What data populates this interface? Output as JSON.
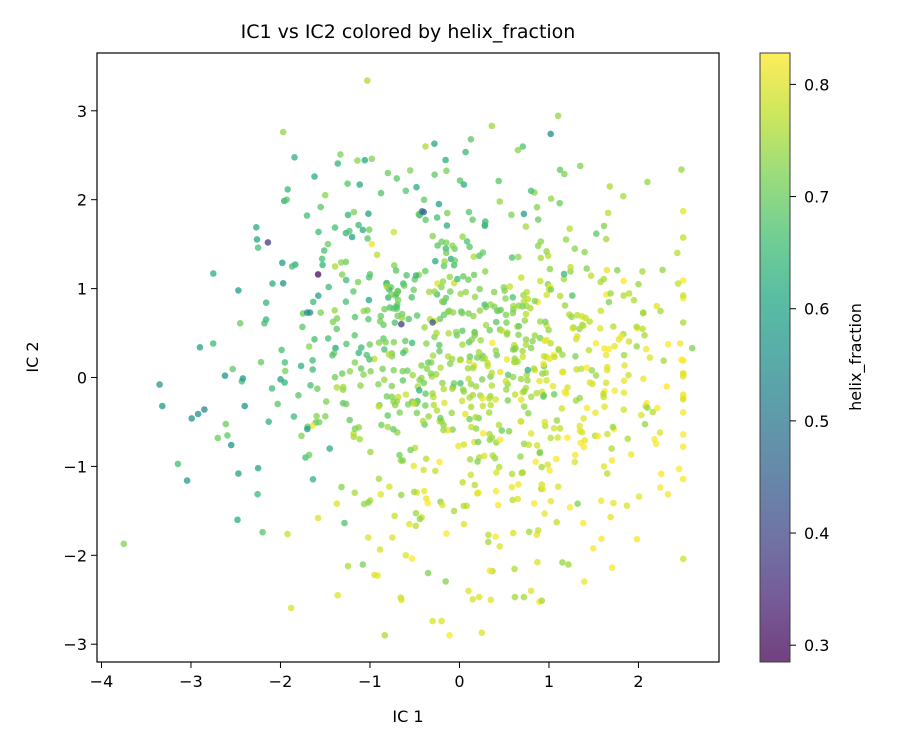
{
  "chart_data": {
    "type": "scatter",
    "title": "IC1 vs IC2 colored by helix_fraction",
    "xlabel": "IC 1",
    "ylabel": "IC 2",
    "xlim": [
      -4.05,
      2.9
    ],
    "ylim": [
      -3.2,
      3.65
    ],
    "xticks": [
      -4,
      -3,
      -2,
      -1,
      0,
      1,
      2
    ],
    "yticks": [
      -3,
      -2,
      -1,
      0,
      1,
      2,
      3
    ],
    "colorbar": {
      "label": "helix_fraction",
      "range": [
        0.285,
        0.828
      ],
      "ticks": [
        0.3,
        0.4,
        0.5,
        0.6,
        0.7,
        0.8
      ],
      "colormap": "viridis"
    },
    "grid": false,
    "n_points_approx": 900,
    "points": [
      {
        "x": -3.75,
        "y": -1.87,
        "c": 0.72
      },
      {
        "x": -3.35,
        "y": -0.08,
        "c": 0.57
      },
      {
        "x": -3.32,
        "y": -0.32,
        "c": 0.57
      },
      {
        "x": -2.92,
        "y": -0.41,
        "c": 0.56
      },
      {
        "x": -2.85,
        "y": -0.36,
        "c": 0.53
      },
      {
        "x": -2.9,
        "y": 0.34,
        "c": 0.6
      },
      {
        "x": -2.75,
        "y": 1.17,
        "c": 0.62
      },
      {
        "x": -2.62,
        "y": 0.02,
        "c": 0.56
      },
      {
        "x": -2.7,
        "y": -0.68,
        "c": 0.7
      },
      {
        "x": -2.55,
        "y": -0.76,
        "c": 0.56
      },
      {
        "x": -2.47,
        "y": 0.98,
        "c": 0.58
      },
      {
        "x": -2.42,
        "y": -0.01,
        "c": 0.58
      },
      {
        "x": -2.45,
        "y": 0.61,
        "c": 0.7
      },
      {
        "x": -2.47,
        "y": -1.08,
        "c": 0.6
      },
      {
        "x": -2.48,
        "y": -1.6,
        "c": 0.62
      },
      {
        "x": -2.27,
        "y": 1.69,
        "c": 0.62
      },
      {
        "x": -2.25,
        "y": 1.46,
        "c": 0.66
      },
      {
        "x": -2.25,
        "y": -1.02,
        "c": 0.6
      },
      {
        "x": -2.14,
        "y": 1.52,
        "c": 0.38
      },
      {
        "x": -2.18,
        "y": 0.61,
        "c": 0.66
      },
      {
        "x": -2.2,
        "y": -1.74,
        "c": 0.68
      },
      {
        "x": -1.97,
        "y": 2.76,
        "c": 0.74
      },
      {
        "x": -1.93,
        "y": 2.0,
        "c": 0.68
      },
      {
        "x": -1.98,
        "y": 1.29,
        "c": 0.58
      },
      {
        "x": -1.97,
        "y": 1.06,
        "c": 0.56
      },
      {
        "x": -1.87,
        "y": 1.25,
        "c": 0.66
      },
      {
        "x": -1.95,
        "y": 0.17,
        "c": 0.66
      },
      {
        "x": -1.8,
        "y": -0.2,
        "c": 0.68
      },
      {
        "x": -1.85,
        "y": -0.44,
        "c": 0.65
      },
      {
        "x": -1.77,
        "y": 0.13,
        "c": 0.63
      },
      {
        "x": -1.72,
        "y": -0.9,
        "c": 0.66
      },
      {
        "x": -1.7,
        "y": -0.58,
        "c": 0.58
      },
      {
        "x": -1.68,
        "y": -0.87,
        "c": 0.7
      },
      {
        "x": -1.62,
        "y": 2.26,
        "c": 0.62
      },
      {
        "x": -1.58,
        "y": 1.16,
        "c": 0.3
      },
      {
        "x": -1.55,
        "y": 0.73,
        "c": 0.72
      },
      {
        "x": -1.67,
        "y": 0.73,
        "c": 0.56
      },
      {
        "x": -1.62,
        "y": 0.43,
        "c": 0.66
      },
      {
        "x": -1.58,
        "y": -1.58,
        "c": 0.8
      },
      {
        "x": -1.5,
        "y": 2.05,
        "c": 0.73
      },
      {
        "x": -1.47,
        "y": 1.5,
        "c": 0.7
      },
      {
        "x": -1.39,
        "y": 1.25,
        "c": 0.76
      },
      {
        "x": -1.42,
        "y": 0.25,
        "c": 0.68
      },
      {
        "x": -1.45,
        "y": -0.8,
        "c": 0.62
      },
      {
        "x": -1.37,
        "y": -1.42,
        "c": 0.8
      },
      {
        "x": -1.36,
        "y": -2.45,
        "c": 0.8
      },
      {
        "x": -1.33,
        "y": 2.51,
        "c": 0.72
      },
      {
        "x": -1.25,
        "y": 2.18,
        "c": 0.68
      },
      {
        "x": -1.18,
        "y": 1.86,
        "c": 0.72
      },
      {
        "x": -1.2,
        "y": 1.58,
        "c": 0.6
      },
      {
        "x": -1.14,
        "y": 2.44,
        "c": 0.73
      },
      {
        "x": -1.08,
        "y": 1.66,
        "c": 0.62
      },
      {
        "x": -1.03,
        "y": 3.34,
        "c": 0.76
      },
      {
        "x": -0.98,
        "y": 2.46,
        "c": 0.72
      },
      {
        "x": -0.92,
        "y": 1.38,
        "c": 0.77
      },
      {
        "x": -0.98,
        "y": 1.5,
        "c": 0.81
      },
      {
        "x": -1.02,
        "y": -1.8,
        "c": 0.8
      },
      {
        "x": -0.95,
        "y": -2.22,
        "c": 0.8
      },
      {
        "x": -0.8,
        "y": 2.3,
        "c": 0.7
      },
      {
        "x": -0.7,
        "y": 2.24,
        "c": 0.68
      },
      {
        "x": -0.55,
        "y": 2.33,
        "c": 0.72
      },
      {
        "x": -0.6,
        "y": 2.1,
        "c": 0.68
      },
      {
        "x": -0.48,
        "y": 2.14,
        "c": 0.62
      },
      {
        "x": -0.38,
        "y": 2.6,
        "c": 0.76
      },
      {
        "x": -0.28,
        "y": 2.63,
        "c": 0.61
      },
      {
        "x": -0.23,
        "y": 1.95,
        "c": 0.6
      },
      {
        "x": -0.42,
        "y": 1.87,
        "c": 0.52
      },
      {
        "x": -0.25,
        "y": 1.8,
        "c": 0.66
      },
      {
        "x": -0.14,
        "y": 1.71,
        "c": 0.62
      },
      {
        "x": 0.05,
        "y": 2.17,
        "c": 0.62
      },
      {
        "x": -0.65,
        "y": -2.5,
        "c": 0.8
      },
      {
        "x": -0.3,
        "y": -2.74,
        "c": 0.8
      },
      {
        "x": -0.2,
        "y": -2.74,
        "c": 0.8
      },
      {
        "x": -0.35,
        "y": -2.2,
        "c": 0.72
      },
      {
        "x": 0.1,
        "y": -2.4,
        "c": 0.8
      },
      {
        "x": 0.25,
        "y": -2.87,
        "c": 0.8
      },
      {
        "x": 0.22,
        "y": -2.47,
        "c": 0.8
      },
      {
        "x": 0.35,
        "y": -2.5,
        "c": 0.8
      },
      {
        "x": 0.62,
        "y": -2.47,
        "c": 0.75
      },
      {
        "x": 0.72,
        "y": -2.47,
        "c": 0.75
      },
      {
        "x": 0.8,
        "y": -2.4,
        "c": 0.8
      },
      {
        "x": 0.92,
        "y": -2.51,
        "c": 0.75
      },
      {
        "x": 0.45,
        "y": 1.98,
        "c": 0.74
      },
      {
        "x": 0.58,
        "y": 1.83,
        "c": 0.72
      },
      {
        "x": 0.8,
        "y": 2.1,
        "c": 0.66
      },
      {
        "x": 0.72,
        "y": 1.84,
        "c": 0.58
      },
      {
        "x": 1.02,
        "y": 2.74,
        "c": 0.54
      },
      {
        "x": 1.35,
        "y": 2.38,
        "c": 0.72
      },
      {
        "x": 1.12,
        "y": 1.96,
        "c": 0.7
      },
      {
        "x": 1.68,
        "y": 2.15,
        "c": 0.76
      },
      {
        "x": 2.1,
        "y": 2.2,
        "c": 0.74
      },
      {
        "x": 2.48,
        "y": 2.34,
        "c": 0.74
      },
      {
        "x": 2.6,
        "y": 0.33,
        "c": 0.72
      },
      {
        "x": 2.27,
        "y": 1.21,
        "c": 0.74
      },
      {
        "x": 2.0,
        "y": 1.05,
        "c": 0.74
      },
      {
        "x": 1.95,
        "y": 0.87,
        "c": 0.76
      },
      {
        "x": 1.98,
        "y": 0.57,
        "c": 0.76
      },
      {
        "x": 1.98,
        "y": 0.35,
        "c": 0.74
      },
      {
        "x": 2.1,
        "y": -0.34,
        "c": 0.74
      },
      {
        "x": 1.88,
        "y": -0.69,
        "c": 0.76
      },
      {
        "x": 1.7,
        "y": -0.8,
        "c": 0.76
      },
      {
        "x": 1.15,
        "y": -2.08,
        "c": 0.74
      },
      {
        "x": 1.32,
        "y": -1.42,
        "c": 0.72
      },
      {
        "x": -0.56,
        "y": -1.65,
        "c": 0.8
      },
      {
        "x": -0.75,
        "y": -1.8,
        "c": 0.8
      },
      {
        "x": -0.6,
        "y": -2.0,
        "c": 0.8
      },
      {
        "x": 0.05,
        "y": -1.65,
        "c": 0.8
      },
      {
        "x": 0.45,
        "y": -1.9,
        "c": 0.8
      },
      {
        "x": 0.6,
        "y": -1.75,
        "c": 0.8
      },
      {
        "x": 0.88,
        "y": -1.72,
        "c": 0.78
      },
      {
        "x": -0.3,
        "y": 0.62,
        "c": 0.42
      },
      {
        "x": -0.65,
        "y": 0.6,
        "c": 0.38
      },
      {
        "x": -0.4,
        "y": 1.86,
        "c": 0.45
      },
      {
        "x": -1.7,
        "y": 0.73,
        "c": 0.55
      },
      {
        "x": -2.4,
        "y": -0.32,
        "c": 0.56
      },
      {
        "x": -2.0,
        "y": -0.02,
        "c": 0.6
      }
    ]
  }
}
